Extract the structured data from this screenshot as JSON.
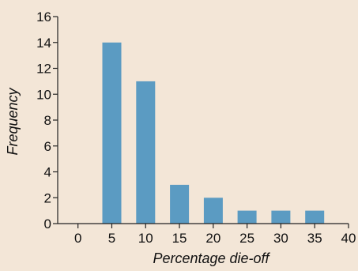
{
  "chart_data": {
    "type": "bar",
    "title": "",
    "xlabel": "Percentage die-off",
    "ylabel": "Frequency",
    "bins": [
      {
        "x_start": 0,
        "x_end": 5,
        "center": 5,
        "value": 14
      },
      {
        "x_start": 5,
        "x_end": 10,
        "center": 10,
        "value": 11
      },
      {
        "x_start": 10,
        "x_end": 15,
        "center": 15,
        "value": 3
      },
      {
        "x_start": 15,
        "x_end": 20,
        "center": 20,
        "value": 2
      },
      {
        "x_start": 20,
        "x_end": 25,
        "center": 25,
        "value": 1
      },
      {
        "x_start": 25,
        "x_end": 30,
        "center": 30,
        "value": 1
      },
      {
        "x_start": 30,
        "x_end": 35,
        "center": 35,
        "value": 1
      }
    ],
    "xticks": [
      0,
      5,
      10,
      15,
      20,
      25,
      30,
      35,
      40
    ],
    "yticks": [
      0,
      2,
      4,
      6,
      8,
      10,
      12,
      14,
      16
    ],
    "xlim": [
      -3,
      40
    ],
    "ylim": [
      0,
      16
    ],
    "grid": false,
    "legend": "none",
    "colors": {
      "bar": "#5b9bc2",
      "axis": "#222222",
      "background": "#f3e6d7"
    }
  }
}
